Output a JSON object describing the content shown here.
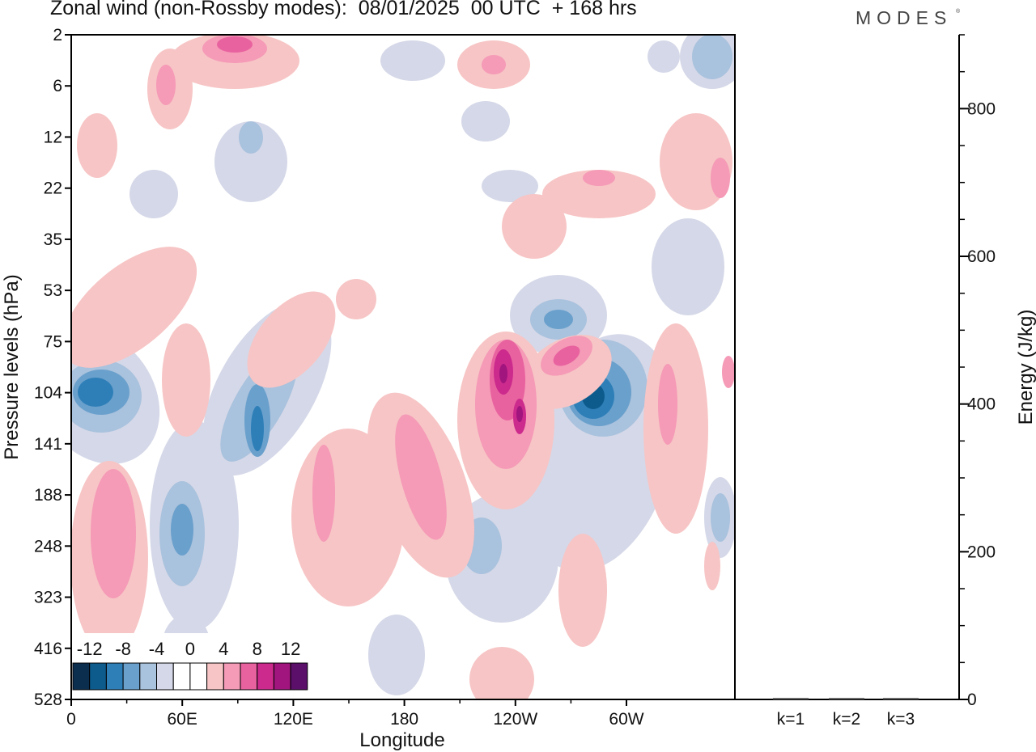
{
  "header": {
    "title": "Zonal wind (non-Rossby modes):  08/01/2025  00 UTC  + 168 hrs",
    "logo": "MODES",
    "logo_mark": "®"
  },
  "chart_data": [
    {
      "type": "heatmap",
      "title": "Zonal wind (non-Rossby modes):  08/01/2025  00 UTC  + 168 hrs",
      "xlabel": "Longitude",
      "ylabel": "Pressure levels (hPa)",
      "x_ticks": [
        "0",
        "60E",
        "120E",
        "180",
        "120W",
        "60W"
      ],
      "y_ticks": [
        "2",
        "6",
        "12",
        "22",
        "35",
        "53",
        "75",
        "104",
        "141",
        "188",
        "248",
        "323",
        "416",
        "528"
      ],
      "colorbar": {
        "labels": [
          "-12",
          "-8",
          "-4",
          "0",
          "4",
          "8",
          "12"
        ],
        "colors": [
          "#0b2e4f",
          "#0d5a8c",
          "#2e7fb8",
          "#6aa0cc",
          "#a9c2dd",
          "#d5d8e8",
          "#ffffff",
          "#ffffff",
          "#f7c5c5",
          "#f59ab7",
          "#e8629f",
          "#cc2a8c",
          "#a0157e",
          "#5b0f6b"
        ]
      }
    },
    {
      "type": "bar",
      "categories": [
        "k=1",
        "k=2",
        "k=3"
      ],
      "values": [
        2,
        2,
        2
      ],
      "ylabel": "Energy (J/kg)",
      "ylim": [
        0,
        900
      ],
      "y_ticks": [
        0,
        200,
        400,
        600,
        800
      ],
      "y_minor_step": 50
    }
  ]
}
